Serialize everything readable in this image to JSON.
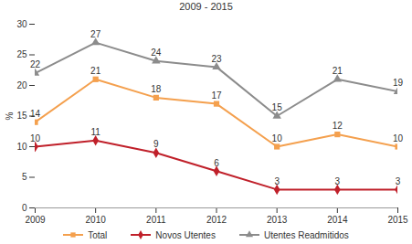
{
  "chart_data": {
    "type": "line",
    "title": "2009 - 2015",
    "y_label": "%",
    "x": [
      2009,
      2010,
      2011,
      2012,
      2013,
      2014,
      2015
    ],
    "xlim": [
      2009,
      2015
    ],
    "xticks": [
      2009,
      2010,
      2011,
      2012,
      2013,
      2014,
      2015
    ],
    "ylim": [
      0,
      30
    ],
    "yticks": [
      0,
      5,
      10,
      15,
      20,
      25,
      30
    ],
    "grid": false,
    "legend": "bottom",
    "data_labels": true,
    "series": [
      {
        "name": "Total",
        "color": "#f4a04e",
        "marker": "square",
        "values": [
          14,
          21,
          18,
          17,
          10,
          12,
          10
        ]
      },
      {
        "name": "Novos Utentes",
        "color": "#c0202a",
        "marker": "diamond",
        "values": [
          10,
          11,
          9,
          6,
          3,
          3,
          3
        ]
      },
      {
        "name": "Utentes Readmitidos",
        "color": "#8c8c8c",
        "marker": "triangle",
        "values": [
          22,
          27,
          24,
          23,
          15,
          21,
          19
        ]
      }
    ]
  }
}
